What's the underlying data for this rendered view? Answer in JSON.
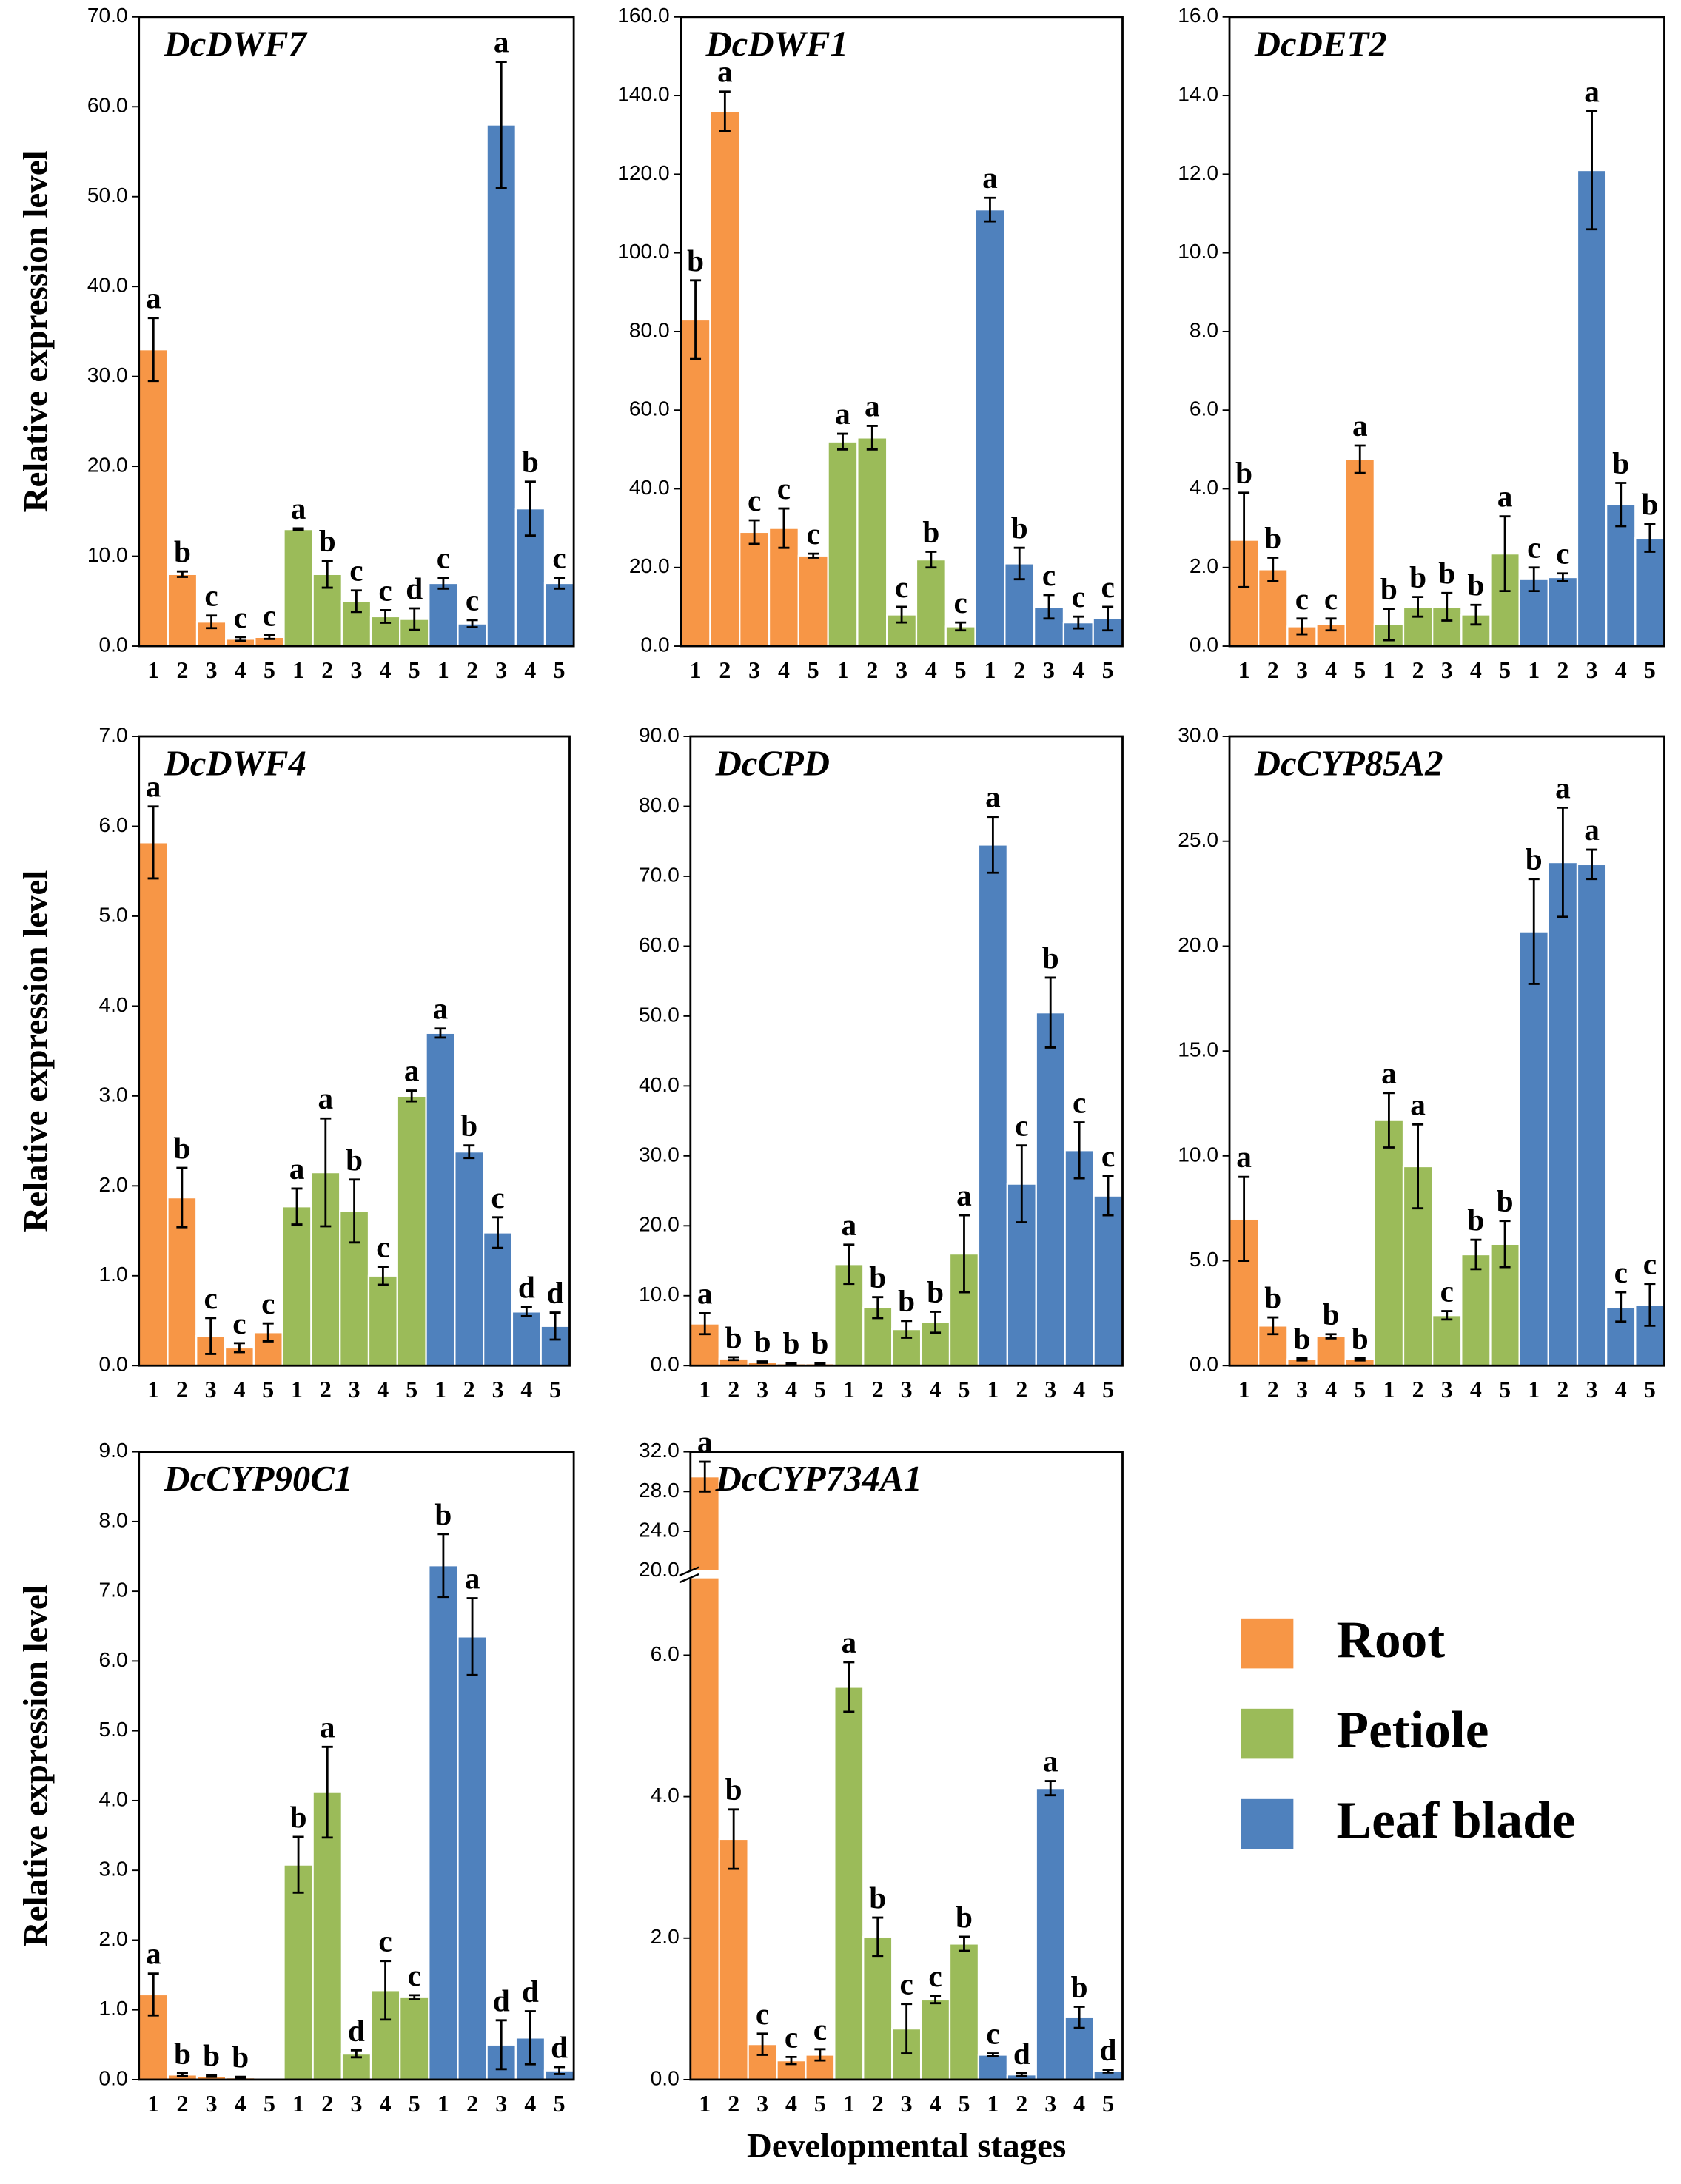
{
  "legend": [
    {
      "name": "Root",
      "color": "#f79646"
    },
    {
      "name": "Petiole",
      "color": "#9bbb59"
    },
    {
      "name": "Leaf blade",
      "color": "#4f81bd"
    }
  ],
  "chart_data": [
    {
      "type": "bar",
      "title": "DcDWF7",
      "y_label": "Relative expression level",
      "categories": [
        "1",
        "2",
        "3",
        "4",
        "5"
      ],
      "ylim": [
        0,
        70
      ],
      "yticks": [
        {
          "value": 0,
          "label": "0.0"
        },
        {
          "value": 10,
          "label": "10.0"
        },
        {
          "value": 20,
          "label": "20.0"
        },
        {
          "value": 30,
          "label": "30.0"
        },
        {
          "value": 40,
          "label": "40.0"
        },
        {
          "value": 50,
          "label": "50.0"
        },
        {
          "value": 60,
          "label": "60.0"
        },
        {
          "value": 70,
          "label": "70.0"
        }
      ],
      "series": [
        {
          "values": [
            33,
            8,
            2.7,
            0.8,
            1.0
          ],
          "errors": [
            3.5,
            0.3,
            0.7,
            0.2,
            0.2
          ],
          "letters": [
            "a",
            "b",
            "c",
            "c",
            "c"
          ]
        },
        {
          "values": [
            13,
            8,
            5,
            3.3,
            3
          ],
          "errors": [
            0.1,
            1.5,
            1.2,
            0.7,
            1.2
          ],
          "letters": [
            "a",
            "b",
            "c",
            "c",
            "d"
          ]
        },
        {
          "values": [
            7,
            2.5,
            58,
            15.3,
            7
          ],
          "errors": [
            0.6,
            0.4,
            7,
            3,
            0.6
          ],
          "letters": [
            "c",
            "c",
            "a",
            "b",
            "c"
          ]
        }
      ]
    },
    {
      "type": "bar",
      "title": "DcDWF1",
      "categories": [
        "1",
        "2",
        "3",
        "4",
        "5"
      ],
      "ylim": [
        0,
        160
      ],
      "yticks": [
        {
          "value": 0,
          "label": "0.0"
        },
        {
          "value": 20,
          "label": "20.0"
        },
        {
          "value": 40,
          "label": "40.0"
        },
        {
          "value": 60,
          "label": "60.0"
        },
        {
          "value": 80,
          "label": "80.0"
        },
        {
          "value": 100,
          "label": "100.0"
        },
        {
          "value": 120,
          "label": "120.0"
        },
        {
          "value": 140,
          "label": "140.0"
        },
        {
          "value": 160,
          "label": "160.0"
        }
      ],
      "series": [
        {
          "values": [
            83,
            136,
            29,
            30,
            23
          ],
          "errors": [
            10,
            5,
            3,
            5,
            0.5
          ],
          "letters": [
            "b",
            "a",
            "c",
            "c",
            "c"
          ]
        },
        {
          "values": [
            52,
            53,
            8,
            22,
            5
          ],
          "errors": [
            2,
            3,
            2,
            2,
            1
          ],
          "letters": [
            "a",
            "a",
            "c",
            "b",
            "c"
          ]
        },
        {
          "values": [
            111,
            21,
            10,
            6,
            7
          ],
          "errors": [
            3,
            4,
            3,
            1.5,
            3
          ],
          "letters": [
            "a",
            "b",
            "c",
            "c",
            "c"
          ]
        }
      ]
    },
    {
      "type": "bar",
      "title": "DcDET2",
      "categories": [
        "1",
        "2",
        "3",
        "4",
        "5"
      ],
      "ylim": [
        0,
        16
      ],
      "yticks": [
        {
          "value": 0,
          "label": "0.0"
        },
        {
          "value": 2,
          "label": "2.0"
        },
        {
          "value": 4,
          "label": "4.0"
        },
        {
          "value": 6,
          "label": "6.0"
        },
        {
          "value": 8,
          "label": "8.0"
        },
        {
          "value": 10,
          "label": "10.0"
        },
        {
          "value": 12,
          "label": "12.0"
        },
        {
          "value": 14,
          "label": "14.0"
        },
        {
          "value": 16,
          "label": "16.0"
        }
      ],
      "series": [
        {
          "values": [
            2.7,
            1.95,
            0.5,
            0.55,
            4.75
          ],
          "errors": [
            1.2,
            0.3,
            0.2,
            0.15,
            0.35
          ],
          "letters": [
            "b",
            "b",
            "c",
            "c",
            "a"
          ]
        },
        {
          "values": [
            0.55,
            1.0,
            1.0,
            0.8,
            2.35
          ],
          "errors": [
            0.4,
            0.25,
            0.35,
            0.25,
            0.95
          ],
          "letters": [
            "b",
            "b",
            "b",
            "b",
            "a"
          ]
        },
        {
          "values": [
            1.7,
            1.75,
            12.1,
            3.6,
            2.75
          ],
          "errors": [
            0.3,
            0.1,
            1.5,
            0.55,
            0.35
          ],
          "letters": [
            "c",
            "c",
            "a",
            "b",
            "b"
          ]
        }
      ]
    },
    {
      "type": "bar",
      "title": "DcDWF4",
      "y_label": "Relative expression level",
      "categories": [
        "1",
        "2",
        "3",
        "4",
        "5"
      ],
      "ylim": [
        0,
        7
      ],
      "yticks": [
        {
          "value": 0,
          "label": "0.0"
        },
        {
          "value": 1,
          "label": "1.0"
        },
        {
          "value": 2,
          "label": "2.0"
        },
        {
          "value": 3,
          "label": "3.0"
        },
        {
          "value": 4,
          "label": "4.0"
        },
        {
          "value": 5,
          "label": "5.0"
        },
        {
          "value": 6,
          "label": "6.0"
        },
        {
          "value": 7,
          "label": "7.0"
        }
      ],
      "series": [
        {
          "values": [
            5.82,
            1.87,
            0.33,
            0.2,
            0.37
          ],
          "errors": [
            0.4,
            0.33,
            0.2,
            0.05,
            0.1
          ],
          "letters": [
            "a",
            "b",
            "c",
            "c",
            "c"
          ]
        },
        {
          "values": [
            1.77,
            2.15,
            1.72,
            1.0,
            3.0
          ],
          "errors": [
            0.2,
            0.6,
            0.35,
            0.1,
            0.06
          ],
          "letters": [
            "a",
            "a",
            "b",
            "c",
            "a"
          ]
        },
        {
          "values": [
            3.7,
            2.38,
            1.48,
            0.6,
            0.44
          ],
          "errors": [
            0.05,
            0.07,
            0.17,
            0.05,
            0.15
          ],
          "letters": [
            "a",
            "b",
            "c",
            "d",
            "d"
          ]
        }
      ]
    },
    {
      "type": "bar",
      "title": "DcCPD",
      "categories": [
        "1",
        "2",
        "3",
        "4",
        "5"
      ],
      "ylim": [
        0,
        90
      ],
      "yticks": [
        {
          "value": 0,
          "label": "0.0"
        },
        {
          "value": 10,
          "label": "10.0"
        },
        {
          "value": 20,
          "label": "20.0"
        },
        {
          "value": 30,
          "label": "30.0"
        },
        {
          "value": 40,
          "label": "40.0"
        },
        {
          "value": 50,
          "label": "50.0"
        },
        {
          "value": 60,
          "label": "60.0"
        },
        {
          "value": 70,
          "label": "70.0"
        },
        {
          "value": 80,
          "label": "80.0"
        },
        {
          "value": 90,
          "label": "90.0"
        }
      ],
      "series": [
        {
          "values": [
            6,
            1.0,
            0.5,
            0.3,
            0.3
          ],
          "errors": [
            1.5,
            0.2,
            0.1,
            0.1,
            0.1
          ],
          "letters": [
            "a",
            "b",
            "b",
            "b",
            "b"
          ]
        },
        {
          "values": [
            14.5,
            8.3,
            5.2,
            6.2,
            16
          ],
          "errors": [
            2.8,
            1.5,
            1.2,
            1.5,
            5.5
          ],
          "letters": [
            "a",
            "b",
            "b",
            "b",
            "a"
          ]
        },
        {
          "values": [
            74.5,
            26,
            50.5,
            30.8,
            24.3
          ],
          "errors": [
            4,
            5.5,
            5,
            4,
            2.8
          ],
          "letters": [
            "a",
            "c",
            "b",
            "c",
            "c"
          ]
        }
      ]
    },
    {
      "type": "bar",
      "title": "DcCYP85A2",
      "categories": [
        "1",
        "2",
        "3",
        "4",
        "5"
      ],
      "ylim": [
        0,
        30
      ],
      "yticks": [
        {
          "value": 0,
          "label": "0.0"
        },
        {
          "value": 5,
          "label": "5.0"
        },
        {
          "value": 10,
          "label": "10.0"
        },
        {
          "value": 15,
          "label": "15.0"
        },
        {
          "value": 20,
          "label": "20.0"
        },
        {
          "value": 25,
          "label": "25.0"
        },
        {
          "value": 30,
          "label": "30.0"
        }
      ],
      "series": [
        {
          "values": [
            7,
            1.9,
            0.3,
            1.4,
            0.3
          ],
          "errors": [
            2,
            0.4,
            0.05,
            0.1,
            0.05
          ],
          "letters": [
            "a",
            "b",
            "b",
            "b",
            "b"
          ]
        },
        {
          "values": [
            11.7,
            9.5,
            2.4,
            5.3,
            5.8
          ],
          "errors": [
            1.3,
            2,
            0.2,
            0.7,
            1.1
          ],
          "letters": [
            "a",
            "a",
            "c",
            "b",
            "b"
          ]
        },
        {
          "values": [
            20.7,
            24,
            23.9,
            2.8,
            2.9
          ],
          "errors": [
            2.5,
            2.6,
            0.7,
            0.7,
            1
          ],
          "letters": [
            "b",
            "a",
            "a",
            "c",
            "c"
          ]
        }
      ]
    },
    {
      "type": "bar",
      "title": "DcCYP90C1",
      "y_label": "Relative expression level",
      "categories": [
        "1",
        "2",
        "3",
        "4",
        "5"
      ],
      "ylim": [
        0,
        9
      ],
      "yticks": [
        {
          "value": 0,
          "label": "0.0"
        },
        {
          "value": 1,
          "label": "1.0"
        },
        {
          "value": 2,
          "label": "2.0"
        },
        {
          "value": 3,
          "label": "3.0"
        },
        {
          "value": 4,
          "label": "4.0"
        },
        {
          "value": 5,
          "label": "5.0"
        },
        {
          "value": 6,
          "label": "6.0"
        },
        {
          "value": 7,
          "label": "7.0"
        },
        {
          "value": 8,
          "label": "8.0"
        },
        {
          "value": 9,
          "label": "9.0"
        }
      ],
      "series": [
        {
          "values": [
            1.22,
            0.07,
            0.05,
            0.03,
            0
          ],
          "errors": [
            0.3,
            0.02,
            0.01,
            0.01,
            null
          ],
          "letters": [
            "a",
            "b",
            "b",
            "b",
            null
          ]
        },
        {
          "values": [
            3.08,
            4.12,
            0.37,
            1.28,
            1.18
          ],
          "errors": [
            0.4,
            0.65,
            0.05,
            0.42,
            0.03
          ],
          "letters": [
            "b",
            "a",
            "d",
            "c",
            "c"
          ]
        },
        {
          "values": [
            7.37,
            6.35,
            0.5,
            0.6,
            0.13
          ],
          "errors": [
            0.45,
            0.55,
            0.35,
            0.38,
            0.05
          ],
          "letters": [
            "b",
            "a",
            "d",
            "d",
            "d"
          ]
        }
      ]
    },
    {
      "type": "bar",
      "title": "DcCYP734A1",
      "x_label": "Developmental stages",
      "categories": [
        "1",
        "2",
        "3",
        "4",
        "5"
      ],
      "ylim": [
        0,
        32
      ],
      "ybreak": [
        7.1,
        20
      ],
      "yticks": [
        {
          "value": 0,
          "label": "0.0"
        },
        {
          "value": 2,
          "label": "2.0"
        },
        {
          "value": 4,
          "label": "4.0"
        },
        {
          "value": 6,
          "label": "6.0"
        },
        {
          "value": 20,
          "label": "20.0"
        },
        {
          "value": 24,
          "label": "24.0"
        },
        {
          "value": 28,
          "label": "28.0"
        },
        {
          "value": 32,
          "label": "32.0"
        }
      ],
      "series": [
        {
          "values": [
            29.5,
            3.4,
            0.5,
            0.27,
            0.35
          ],
          "errors": [
            1.5,
            0.42,
            0.15,
            0.05,
            0.08
          ],
          "letters": [
            "a",
            "b",
            "c",
            "c",
            "c"
          ]
        },
        {
          "values": [
            5.55,
            2.02,
            0.72,
            1.13,
            1.92
          ],
          "errors": [
            0.35,
            0.27,
            0.35,
            0.05,
            0.1
          ],
          "letters": [
            "a",
            "b",
            "c",
            "c",
            "b"
          ]
        },
        {
          "values": [
            0.35,
            0.07,
            4.12,
            0.88,
            0.12
          ],
          "errors": [
            0.02,
            0.02,
            0.1,
            0.15,
            0.02
          ],
          "letters": [
            "c",
            "d",
            "a",
            "b",
            "d"
          ]
        }
      ]
    }
  ]
}
